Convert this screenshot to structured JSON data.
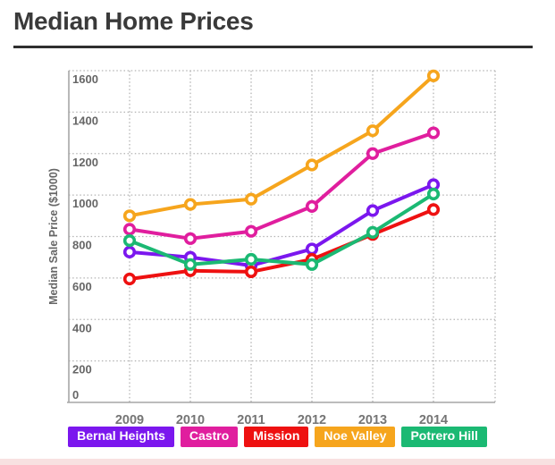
{
  "page": {
    "title": "Median Home Prices",
    "bottom_strip_color": "#F8E1E1"
  },
  "chart_data": {
    "type": "line",
    "title": "Median Home Prices",
    "xlabel": "",
    "ylabel": "Median Sale Price ($1000)",
    "x": [
      "2009",
      "2010",
      "2011",
      "2012",
      "2013",
      "2014"
    ],
    "ylim": [
      0,
      1600
    ],
    "yticks": [
      0,
      200,
      400,
      600,
      800,
      1000,
      1200,
      1400,
      1600
    ],
    "grid": "dotted",
    "legend_position": "bottom",
    "marker": "open-circle",
    "series": [
      {
        "name": "Bernal Heights",
        "color": "#7B17EE",
        "values": [
          725,
          700,
          660,
          740,
          925,
          1050
        ]
      },
      {
        "name": "Castro",
        "color": "#E01E9E",
        "values": [
          835,
          790,
          825,
          945,
          1200,
          1300
        ]
      },
      {
        "name": "Mission",
        "color": "#EE1111",
        "values": [
          595,
          635,
          630,
          690,
          810,
          930
        ]
      },
      {
        "name": "Noe Valley",
        "color": "#F6A51D",
        "values": [
          900,
          955,
          980,
          1145,
          1310,
          1575
        ]
      },
      {
        "name": "Potrero Hill",
        "color": "#1BB973",
        "values": [
          780,
          665,
          690,
          665,
          820,
          1005
        ]
      }
    ]
  }
}
